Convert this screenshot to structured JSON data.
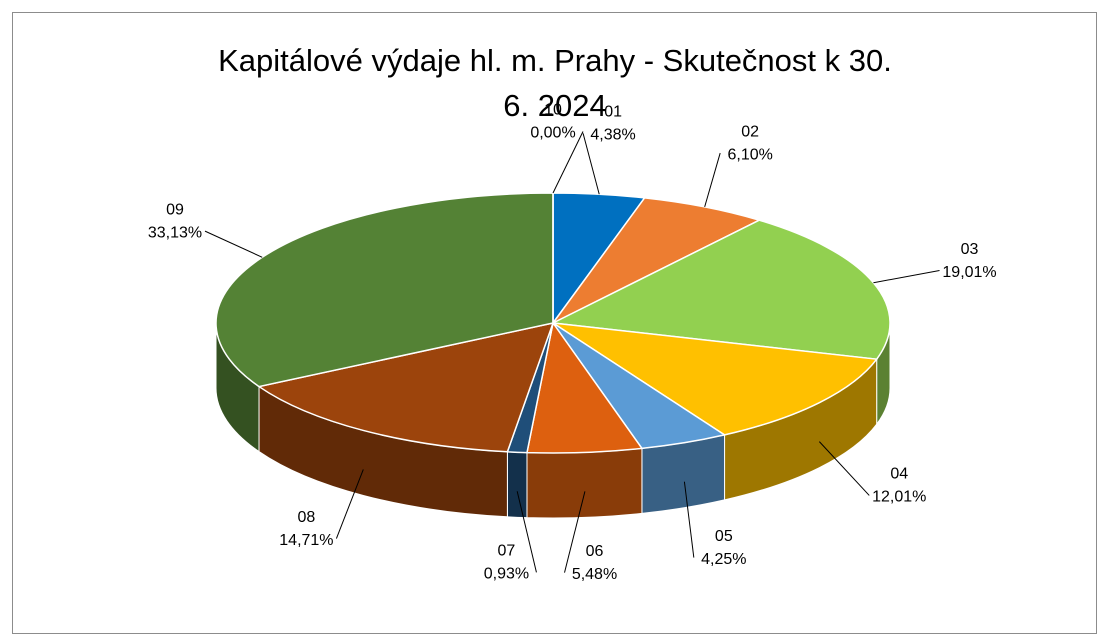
{
  "chart_data": {
    "type": "pie",
    "title": "Kapitálové výdaje hl. m. Prahy - Skutečnost k 30. 6. 2024",
    "categories": [
      "01",
      "02",
      "03",
      "04",
      "05",
      "06",
      "07",
      "08",
      "09",
      "10"
    ],
    "values": [
      4.38,
      6.1,
      19.01,
      12.01,
      4.25,
      5.48,
      0.93,
      14.71,
      33.13,
      0.0
    ],
    "value_labels": [
      "4,38%",
      "6,10%",
      "19,01%",
      "12,01%",
      "4,25%",
      "5,48%",
      "0,93%",
      "14,71%",
      "33,13%",
      "0,00%"
    ],
    "colors": [
      "#0070c0",
      "#ed7d31",
      "#92d050",
      "#ffc000",
      "#5b9bd5",
      "#dd600f",
      "#1f4e79",
      "#9c440c",
      "#548235",
      "#7f7f7f"
    ]
  }
}
